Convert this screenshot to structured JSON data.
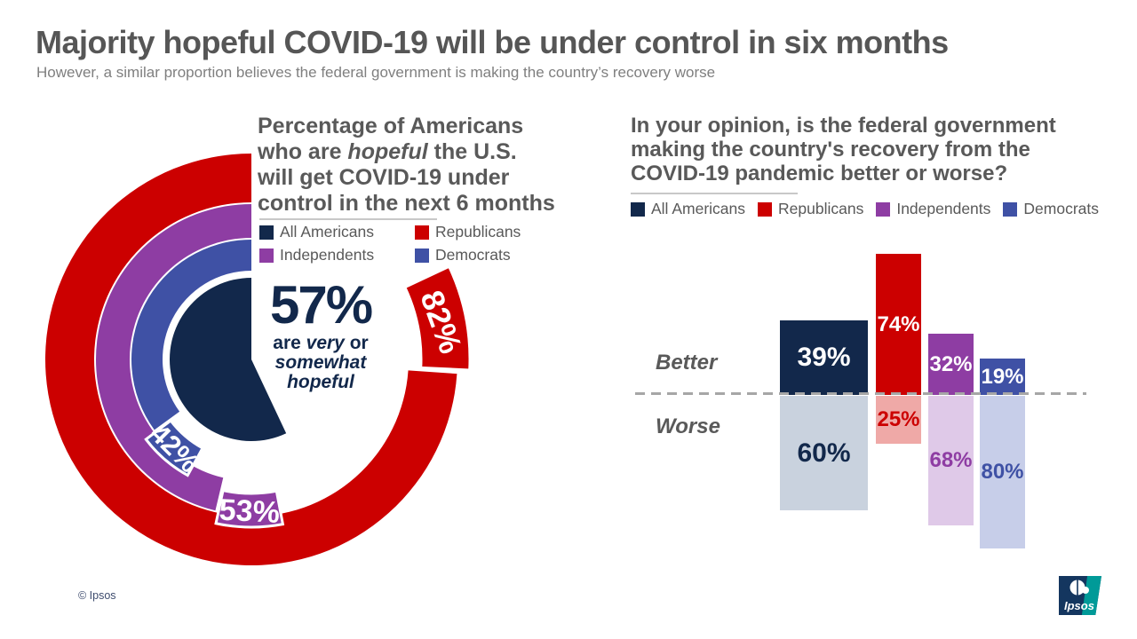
{
  "page": {
    "title": "Majority hopeful COVID-19 will be under control in six months",
    "subtitle": "However, a similar proportion believes the federal government is making the country’s recovery worse",
    "copyright": "© Ipsos",
    "logo_text": "Ipsos"
  },
  "parties": {
    "All Americans": {
      "color": "#12284B",
      "tint": "#C9D2DE"
    },
    "Republicans": {
      "color": "#CC0000",
      "tint": "#EFA9A7"
    },
    "Independents": {
      "color": "#8E3DA3",
      "tint": "#DFC9E8"
    },
    "Democrats": {
      "color": "#3F51A5",
      "tint": "#C7CEE9"
    }
  },
  "legend_order": [
    "All Americans",
    "Republicans",
    "Independents",
    "Democrats"
  ],
  "donut_text": {
    "title_lines": [
      [
        {
          "t": "Percentage of Americans"
        }
      ],
      [
        {
          "t": "who are "
        },
        {
          "t": "hopeful",
          "i": true
        },
        {
          "t": " the U.S."
        }
      ],
      [
        {
          "t": "will get COVID-19 under"
        }
      ],
      [
        {
          "t": "control in the next 6 months"
        }
      ]
    ],
    "caption_lines": [
      [
        {
          "t": "are "
        },
        {
          "t": "very",
          "i": true
        },
        {
          "t": " or"
        }
      ],
      [
        {
          "t": "somewhat",
          "i": true
        }
      ],
      [
        {
          "t": "hopeful",
          "i": true
        }
      ]
    ]
  },
  "bars_text": {
    "title_lines": [
      "In your opinion, is the federal government",
      "making the country's recovery from the",
      "COVID-19 pandemic better or worse?"
    ]
  },
  "chart_data": [
    {
      "type": "pie",
      "variant": "concentric-rings",
      "title": "Percentage of Americans who are hopeful the U.S. will get COVID-19 under control in the next 6 months",
      "legend_position": "top",
      "center": {
        "name": "All Americans",
        "value": 57,
        "label": "57%",
        "caption": "are very or somewhat hopeful"
      },
      "rings": [
        {
          "name": "Republicans",
          "value": 82,
          "label": "82%"
        },
        {
          "name": "Independents",
          "value": 53,
          "label": "53%"
        },
        {
          "name": "Democrats",
          "value": 42,
          "label": "42%"
        }
      ]
    },
    {
      "type": "bar",
      "variant": "diverging",
      "title": "In your opinion, is the federal government making the country's recovery from the COVID-19 pandemic better or worse?",
      "categories": [
        "All Americans",
        "Republicans",
        "Independents",
        "Democrats"
      ],
      "series": [
        {
          "name": "Better",
          "values": [
            39,
            74,
            32,
            19
          ],
          "labels": [
            "39%",
            "74%",
            "32%",
            "19%"
          ]
        },
        {
          "name": "Worse",
          "values": [
            60,
            25,
            68,
            80
          ],
          "labels": [
            "60%",
            "25%",
            "68%",
            "80%"
          ]
        }
      ],
      "row_labels": [
        "Better",
        "Worse"
      ],
      "ylim": [
        0,
        100
      ],
      "baseline": "dashed",
      "legend_position": "top"
    }
  ]
}
